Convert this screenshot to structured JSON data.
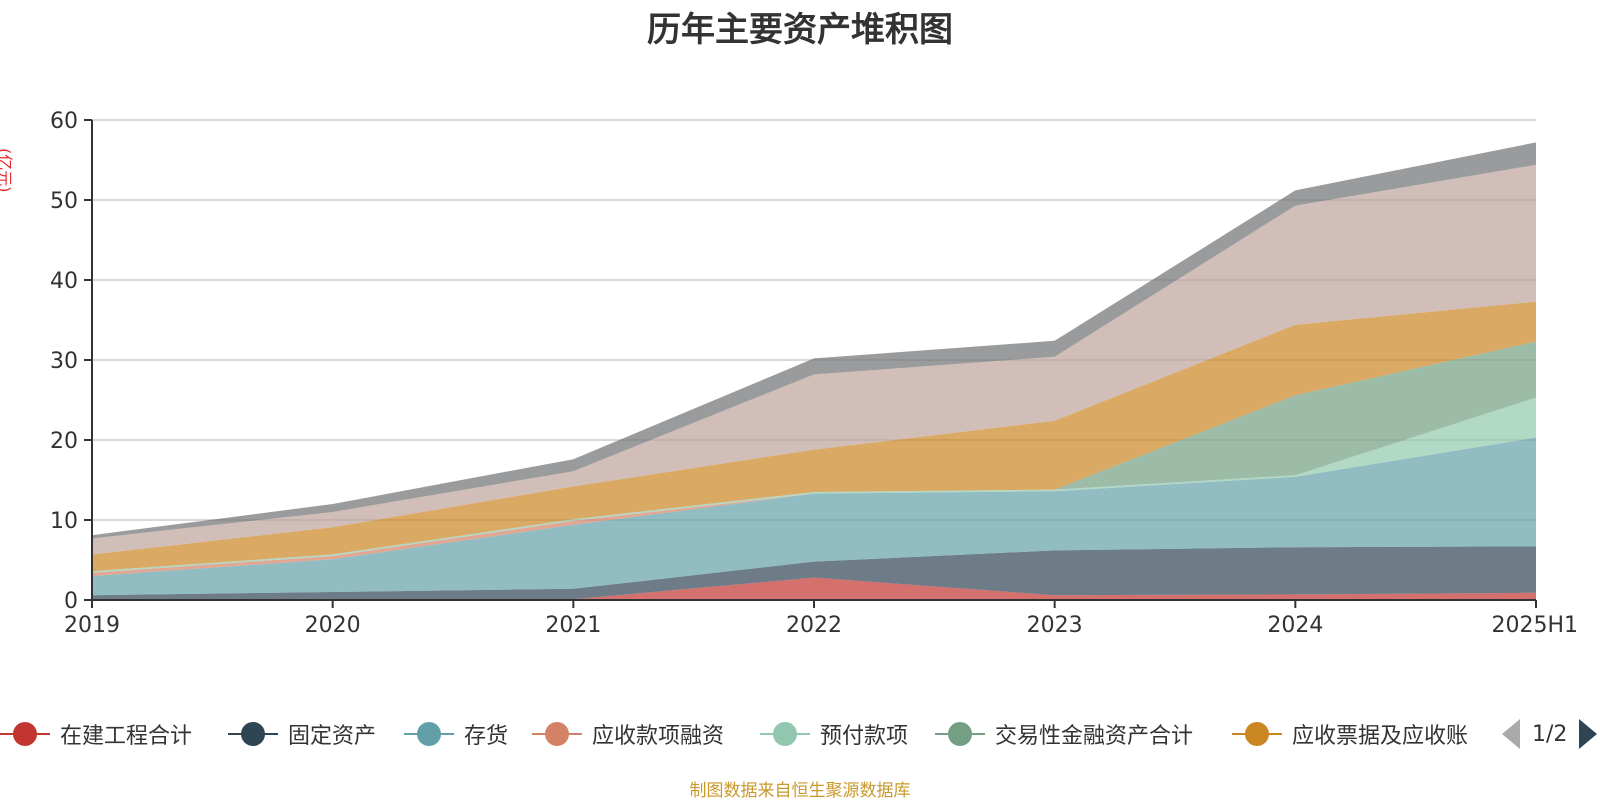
{
  "title": "历年主要资产堆积图",
  "unit_label": "(亿元)",
  "source_note": "制图数据来自恒生聚源数据库",
  "legend": {
    "items": [
      {
        "label": "在建工程合计",
        "color": "#c23531"
      },
      {
        "label": "固定资产",
        "color": "#2f4554"
      },
      {
        "label": "存货",
        "color": "#61a0a8"
      },
      {
        "label": "应收款项融资",
        "color": "#d48265"
      },
      {
        "label": "预付款项",
        "color": "#91c7ae"
      },
      {
        "label": "交易性金融资产合计",
        "color": "#749f83"
      },
      {
        "label": "应收票据及应收账",
        "color": "#ca8622"
      }
    ],
    "page_text": "1/2"
  },
  "chart_data": {
    "type": "area",
    "stacked": true,
    "categories": [
      "2019",
      "2020",
      "2021",
      "2022",
      "2023",
      "2024",
      "2025H1"
    ],
    "y_ticks": [
      "0",
      "10",
      "20",
      "30",
      "40",
      "50",
      "60"
    ],
    "ylim": [
      0,
      60
    ],
    "grid": true,
    "series": [
      {
        "name": "在建工程合计",
        "color": "#c23531",
        "values": [
          0.1,
          0.1,
          0.1,
          2.8,
          0.6,
          0.7,
          0.9
        ]
      },
      {
        "name": "固定资产",
        "color": "#2f4554",
        "values": [
          0.5,
          0.9,
          1.3,
          2.0,
          5.6,
          5.9,
          5.8
        ]
      },
      {
        "name": "存货",
        "color": "#61a0a8",
        "values": [
          2.4,
          4.1,
          8.0,
          8.5,
          7.4,
          8.8,
          13.6
        ]
      },
      {
        "name": "应收款项融资",
        "color": "#d48265",
        "values": [
          0.4,
          0.4,
          0.5,
          0.0,
          0.0,
          0.0,
          0.0
        ]
      },
      {
        "name": "预付款项",
        "color": "#91c7ae",
        "values": [
          0.2,
          0.2,
          0.2,
          0.2,
          0.2,
          0.2,
          5.0
        ]
      },
      {
        "name": "交易性金融资产合计",
        "color": "#749f83",
        "values": [
          0.0,
          0.0,
          0.0,
          0.0,
          0.0,
          10.0,
          7.0
        ]
      },
      {
        "name": "应收票据及应收账",
        "color": "#ca8622",
        "values": [
          2.1,
          3.4,
          4.1,
          5.3,
          8.6,
          8.8,
          5.0
        ]
      },
      {
        "color": "#bda29a",
        "values": [
          2.0,
          1.9,
          1.9,
          9.4,
          8.0,
          14.9,
          17.1
        ]
      },
      {
        "color": "#6e7074",
        "values": [
          0.4,
          1.0,
          1.5,
          2.0,
          2.0,
          1.9,
          2.8
        ]
      }
    ]
  }
}
